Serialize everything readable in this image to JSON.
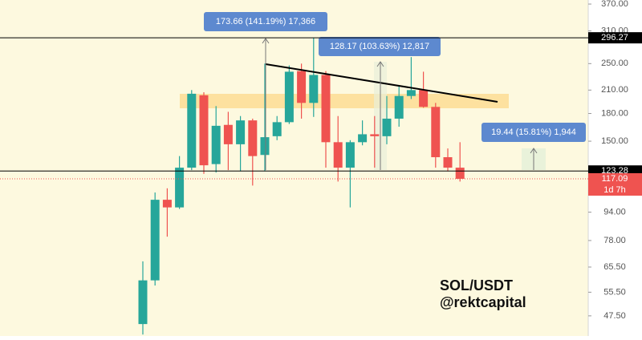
{
  "chart_data": {
    "type": "candlestick",
    "title": "SOL/USDT",
    "subtitle": "@rektcapital",
    "log_scale": true,
    "up_color": "#26a69a",
    "down_color": "#ef5350",
    "ylim": [
      41.6,
      380
    ],
    "yticks": [
      {
        "value": 370,
        "label": "370.00"
      },
      {
        "value": 310,
        "label": "310.00"
      },
      {
        "value": 250,
        "label": "250.00"
      },
      {
        "value": 210,
        "label": "210.00"
      },
      {
        "value": 180,
        "label": "180.00"
      },
      {
        "value": 150,
        "label": "150.00"
      },
      {
        "value": 94,
        "label": "94.00"
      },
      {
        "value": 78,
        "label": "78.00"
      },
      {
        "value": 65.5,
        "label": "65.50"
      },
      {
        "value": 55.5,
        "label": "55.50"
      },
      {
        "value": 47.5,
        "label": "47.50"
      }
    ],
    "open": [
      45,
      60,
      102,
      97,
      126,
      203,
      129,
      167,
      147,
      172,
      137,
      155,
      170,
      238,
      193,
      232,
      149,
      126,
      149,
      157,
      155,
      174,
      202,
      210,
      188,
      135,
      126
    ],
    "high": [
      68,
      107,
      110,
      136,
      210,
      207,
      189,
      182,
      177,
      174,
      250,
      177,
      247,
      250,
      296,
      238,
      177,
      151,
      172,
      177,
      202,
      215,
      261,
      237,
      193,
      143,
      149
    ],
    "low": [
      42,
      58,
      80,
      96,
      124,
      121,
      122,
      124,
      123,
      112,
      123,
      151,
      168,
      174,
      176,
      126,
      115,
      97,
      146,
      126,
      147,
      165,
      198,
      187,
      126,
      123,
      115
    ],
    "close": [
      60,
      102,
      97,
      126,
      205,
      128,
      166,
      147,
      172,
      136,
      154,
      170,
      237,
      193,
      232,
      149,
      126,
      149,
      157,
      155,
      174,
      202,
      210,
      188,
      135,
      126,
      117.09
    ],
    "hlines": [
      {
        "value": 296.27,
        "color": "#000000"
      },
      {
        "value": 123.28,
        "color": "#000000"
      }
    ],
    "last_price": 117.09,
    "last_color": "#ef5350",
    "countdown": "1d 7h",
    "measure_labels": [
      "173.66 (141.19%) 17,366",
      "128.17 (103.63%) 12,817",
      "19.44 (15.81%) 1,944"
    ]
  }
}
